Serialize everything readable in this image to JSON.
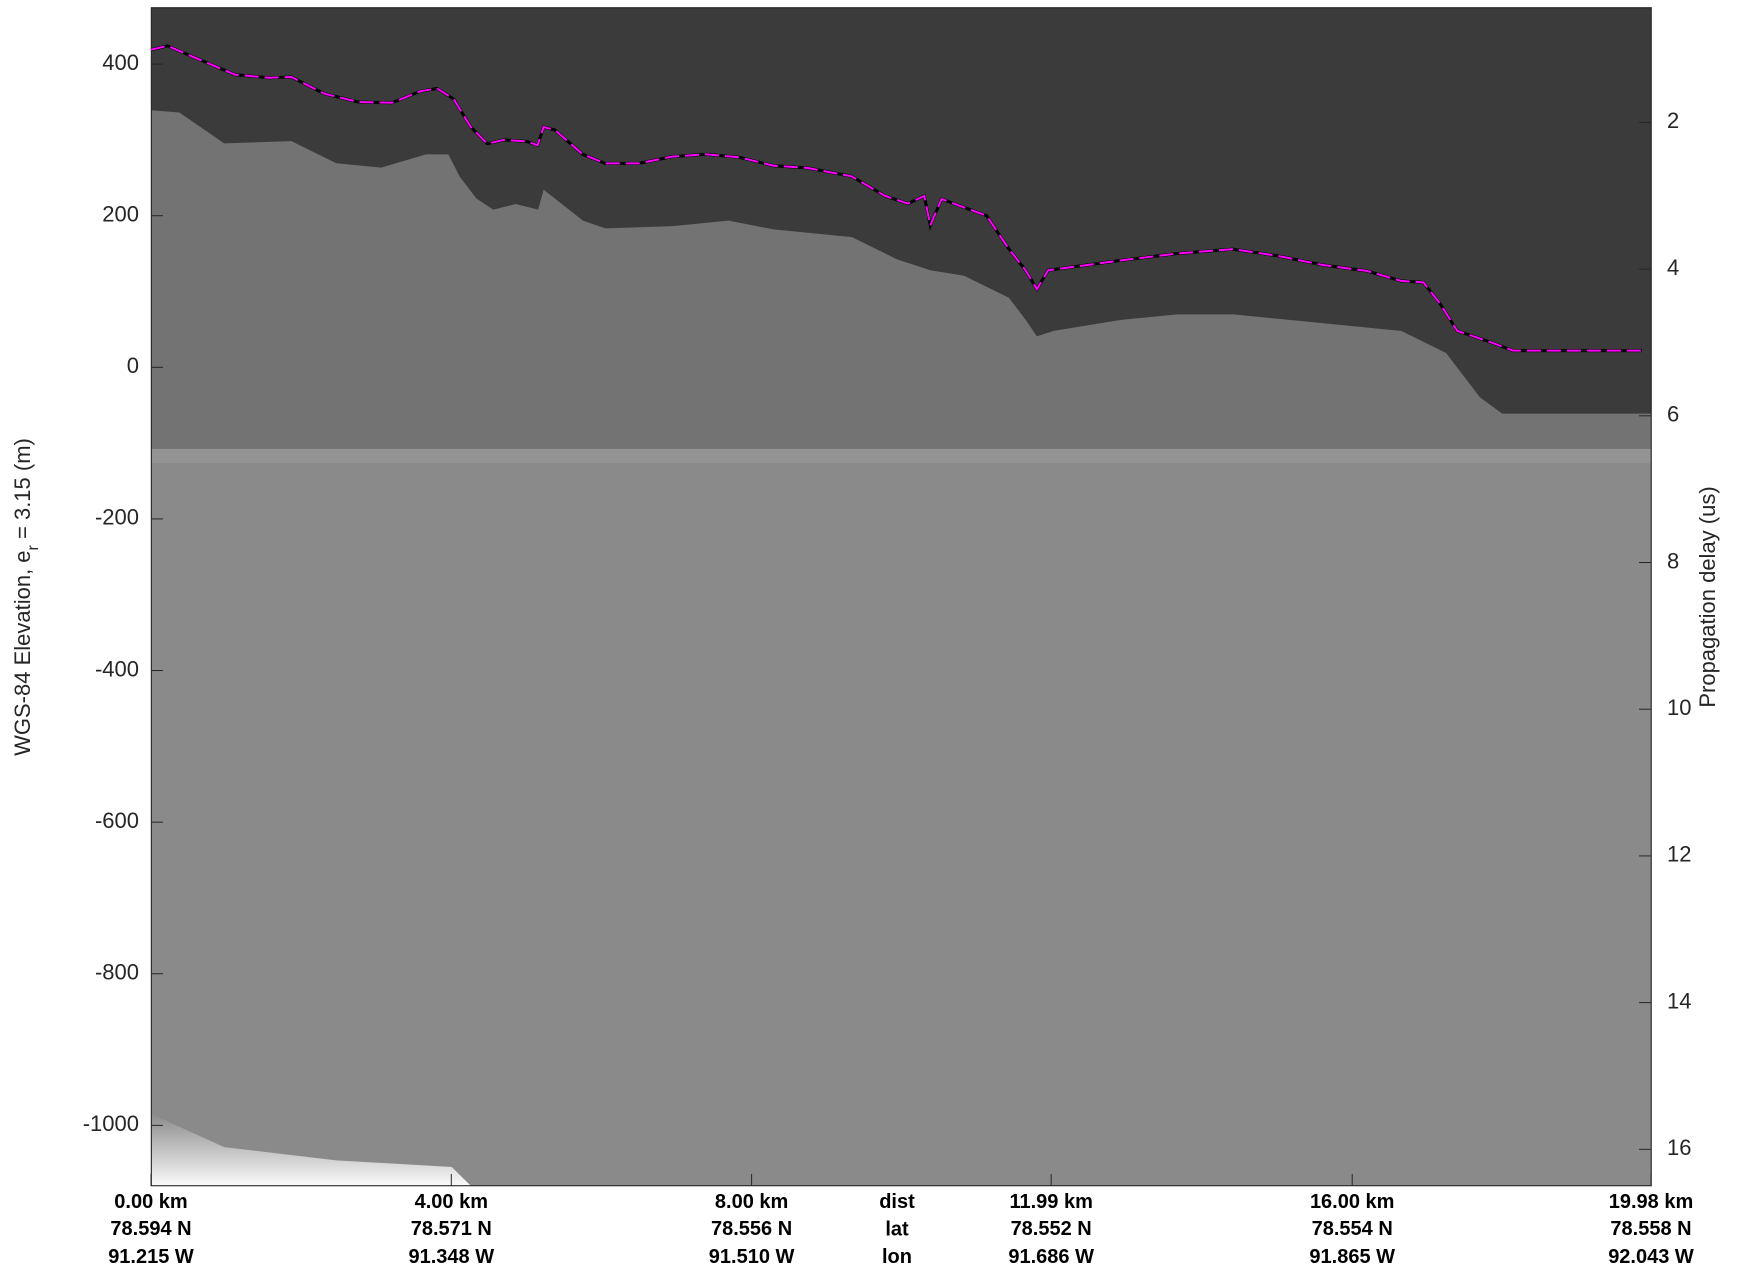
{
  "chart_data": {
    "type": "echogram",
    "ylabel": "WGS-84 Elevation, e",
    "ylabel_subscript": "r",
    "ylabel_suffix": " = 3.15 (m)",
    "y2label": "Propagation delay (us)",
    "xlim": [
      0,
      19.98
    ],
    "xticks": [
      {
        "value": 0,
        "label": "0.00 km"
      },
      {
        "value": 4.0,
        "label": "4.00 km"
      },
      {
        "value": 8.0,
        "label": "8.00 km"
      },
      {
        "value": 11.99,
        "label": "11.99 km"
      },
      {
        "value": 16.0,
        "label": "16.00 km"
      },
      {
        "value": 19.98,
        "label": "19.98 km"
      }
    ],
    "lat_labels": [
      "78.594 N",
      "78.571 N",
      "78.556 N",
      "78.552 N",
      "78.554 N",
      "78.558 N"
    ],
    "lon_labels": [
      "91.215 W",
      "91.348 W",
      "91.510 W",
      "91.686 W",
      "91.865 W",
      "92.043 W"
    ],
    "row_labels": [
      "dist",
      "lat",
      "lon"
    ],
    "ylim": [
      -1080,
      474
    ],
    "yticks": [
      -1000,
      -800,
      -600,
      -400,
      -200,
      0,
      200,
      400
    ],
    "y2lim": [
      0.44,
      16.5
    ],
    "y2ticks": [
      2,
      4,
      6,
      8,
      10,
      12,
      14,
      16
    ],
    "surface": {
      "color": "#ff00ff",
      "x": [
        0,
        0.22,
        0.67,
        1.12,
        1.57,
        1.87,
        2.31,
        2.76,
        3.21,
        3.58,
        3.81,
        4.03,
        4.26,
        4.48,
        4.7,
        5.0,
        5.15,
        5.23,
        5.38,
        5.75,
        6.05,
        6.5,
        6.94,
        7.39,
        7.84,
        8.29,
        8.74,
        9.33,
        9.78,
        10.08,
        10.3,
        10.38,
        10.53,
        10.83,
        11.13,
        11.42,
        11.65,
        11.8,
        11.95,
        12.32,
        12.92,
        13.66,
        14.41,
        15.01,
        15.61,
        16.2,
        16.65,
        16.95,
        17.17,
        17.4,
        17.85,
        18.14,
        18.89,
        19.86
      ],
      "values": [
        419,
        424,
        405,
        386,
        382,
        383,
        361,
        350,
        349,
        364,
        368,
        354,
        317,
        295,
        300,
        298,
        293,
        317,
        313,
        281,
        269,
        269,
        278,
        281,
        277,
        266,
        263,
        252,
        226,
        216,
        226,
        187,
        222,
        211,
        200,
        157,
        128,
        103,
        128,
        133,
        141,
        150,
        156,
        147,
        135,
        127,
        114,
        112,
        84,
        48,
        33,
        22,
        22,
        22
      ]
    }
  }
}
